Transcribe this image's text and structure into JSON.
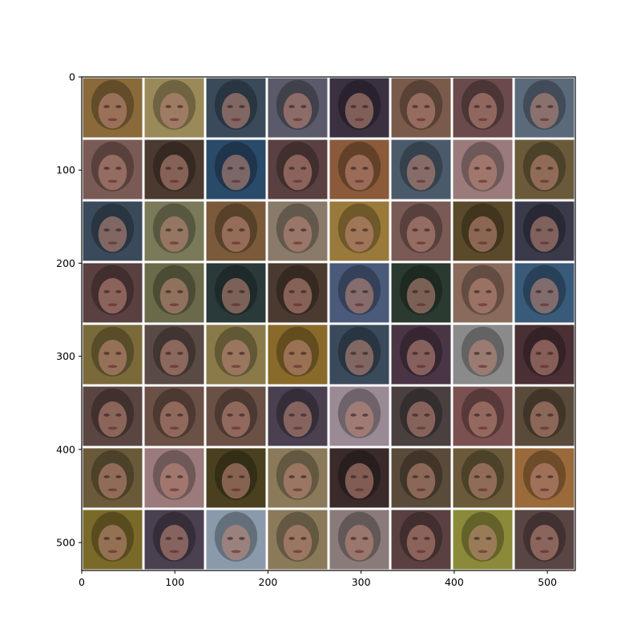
{
  "figure": {
    "grid_rows": 8,
    "grid_cols": 8,
    "content": "generated face samples",
    "axis_frame_color": "#000000"
  },
  "axes": {
    "x_ticks": [
      "0",
      "100",
      "200",
      "300",
      "400",
      "500"
    ],
    "y_ticks": [
      "0",
      "100",
      "200",
      "300",
      "400",
      "500"
    ],
    "x_range": [
      0,
      530
    ],
    "y_range": [
      0,
      530
    ]
  },
  "tiles": [
    [
      "#8a6a3a",
      "#9a8a5a",
      "#3a4a5a",
      "#5a5a6a",
      "#3a3040",
      "#7a5a4a",
      "#6a4a4a",
      "#5a6a7a"
    ],
    [
      "#7a5a55",
      "#4a3a30",
      "#2a4a6a",
      "#5a4040",
      "#8a5a3a",
      "#4a5a6a",
      "#9a7a7a",
      "#6a5a3a"
    ],
    [
      "#3a4a5a",
      "#7a7a5a",
      "#7a5a3a",
      "#8a7a6a",
      "#9a7a3a",
      "#7a5a55",
      "#5a4a2a",
      "#3a3a4a"
    ],
    [
      "#5a4040",
      "#6a6a4a",
      "#2a3a3a",
      "#4a3a30",
      "#4a5a7a",
      "#2a3a30",
      "#8a6a5a",
      "#3a5a7a"
    ],
    [
      "#7a6a3a",
      "#5a4a45",
      "#8a7a4a",
      "#8a6a2a",
      "#3a4a5a",
      "#4a3545",
      "#8a8a8a",
      "#4a3035"
    ],
    [
      "#5a4540",
      "#6a5045",
      "#6a5045",
      "#4a4050",
      "#9a8a95",
      "#4a4040",
      "#7a5050",
      "#5a4a3a"
    ],
    [
      "#6a5a3a",
      "#9a7a7a",
      "#4a4020",
      "#8a7a5a",
      "#3a2a2a",
      "#5a4a3a",
      "#6a5a3a",
      "#9a6a3a"
    ],
    [
      "#7a6a2a",
      "#4a4050",
      "#8a9aaa",
      "#8a7a5a",
      "#8a7a7a",
      "#5a4040",
      "#8a8a3a",
      "#5a4545"
    ]
  ]
}
